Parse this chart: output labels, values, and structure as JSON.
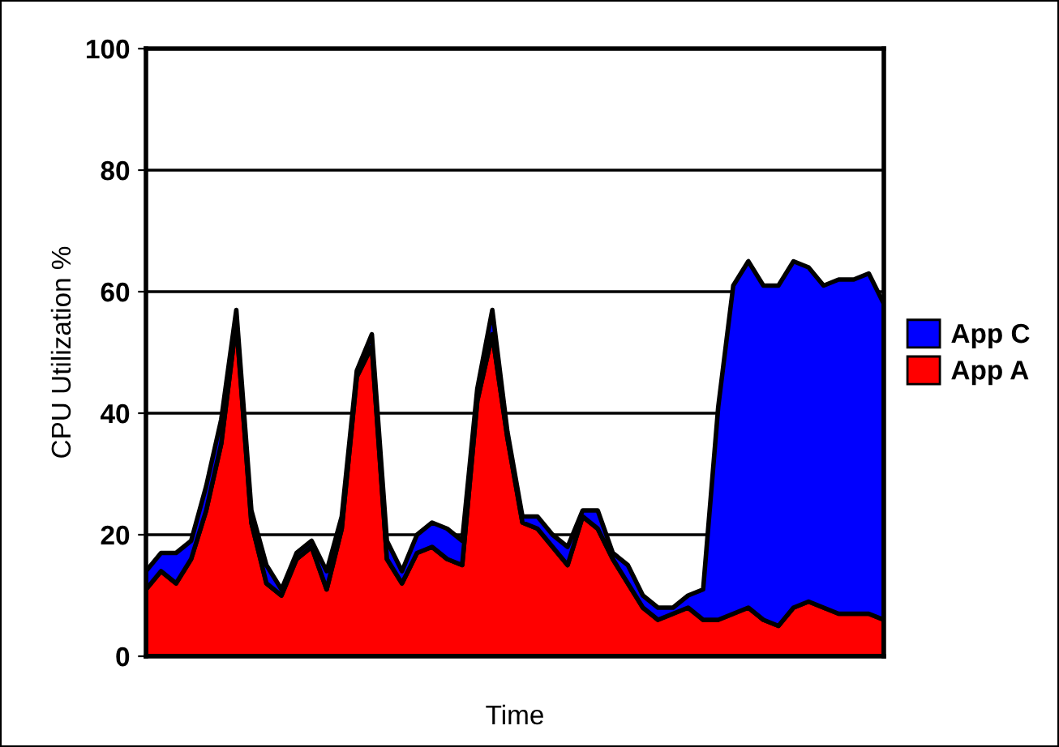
{
  "chart_data": {
    "type": "area",
    "stacked": true,
    "xlabel": "Time",
    "ylabel": "CPU Utilization %",
    "categories": [
      null,
      null,
      null,
      null,
      null,
      null,
      null,
      null,
      null,
      null,
      null,
      null,
      null,
      null,
      null,
      null,
      null,
      null,
      null,
      null,
      null,
      null,
      null,
      null,
      null,
      null,
      null,
      null,
      null,
      null,
      null,
      null,
      null,
      null,
      null,
      null,
      null,
      null,
      null,
      null,
      null,
      null,
      null,
      null,
      null,
      null,
      null,
      null,
      null,
      null
    ],
    "series": [
      {
        "name": "App A",
        "color": "#ff0000",
        "values": [
          11,
          14,
          12,
          16,
          24,
          35,
          55,
          22,
          12,
          10,
          16,
          18,
          11,
          21,
          46,
          51,
          16,
          12,
          17,
          18,
          16,
          15,
          42,
          53,
          36,
          22,
          21,
          18,
          15,
          23,
          21,
          16,
          12,
          8,
          6,
          7,
          8,
          6,
          6,
          7,
          8,
          6,
          5,
          8,
          9,
          8,
          7,
          7,
          7,
          6
        ]
      },
      {
        "name": "App C",
        "color": "#0000ff",
        "values": [
          3,
          3,
          5,
          3,
          4,
          4,
          2,
          2,
          3,
          1,
          1,
          1,
          3,
          2,
          1,
          2,
          3,
          2,
          3,
          4,
          5,
          4,
          2,
          4,
          1,
          1,
          2,
          2,
          3,
          1,
          3,
          1,
          3,
          2,
          2,
          1,
          2,
          5,
          35,
          54,
          57,
          55,
          56,
          57,
          55,
          53,
          55,
          55,
          56,
          52
        ]
      }
    ],
    "ylim": [
      0,
      100
    ],
    "yticks": [
      0,
      20,
      40,
      60,
      80,
      100
    ],
    "grid": "y",
    "legend": "right"
  }
}
